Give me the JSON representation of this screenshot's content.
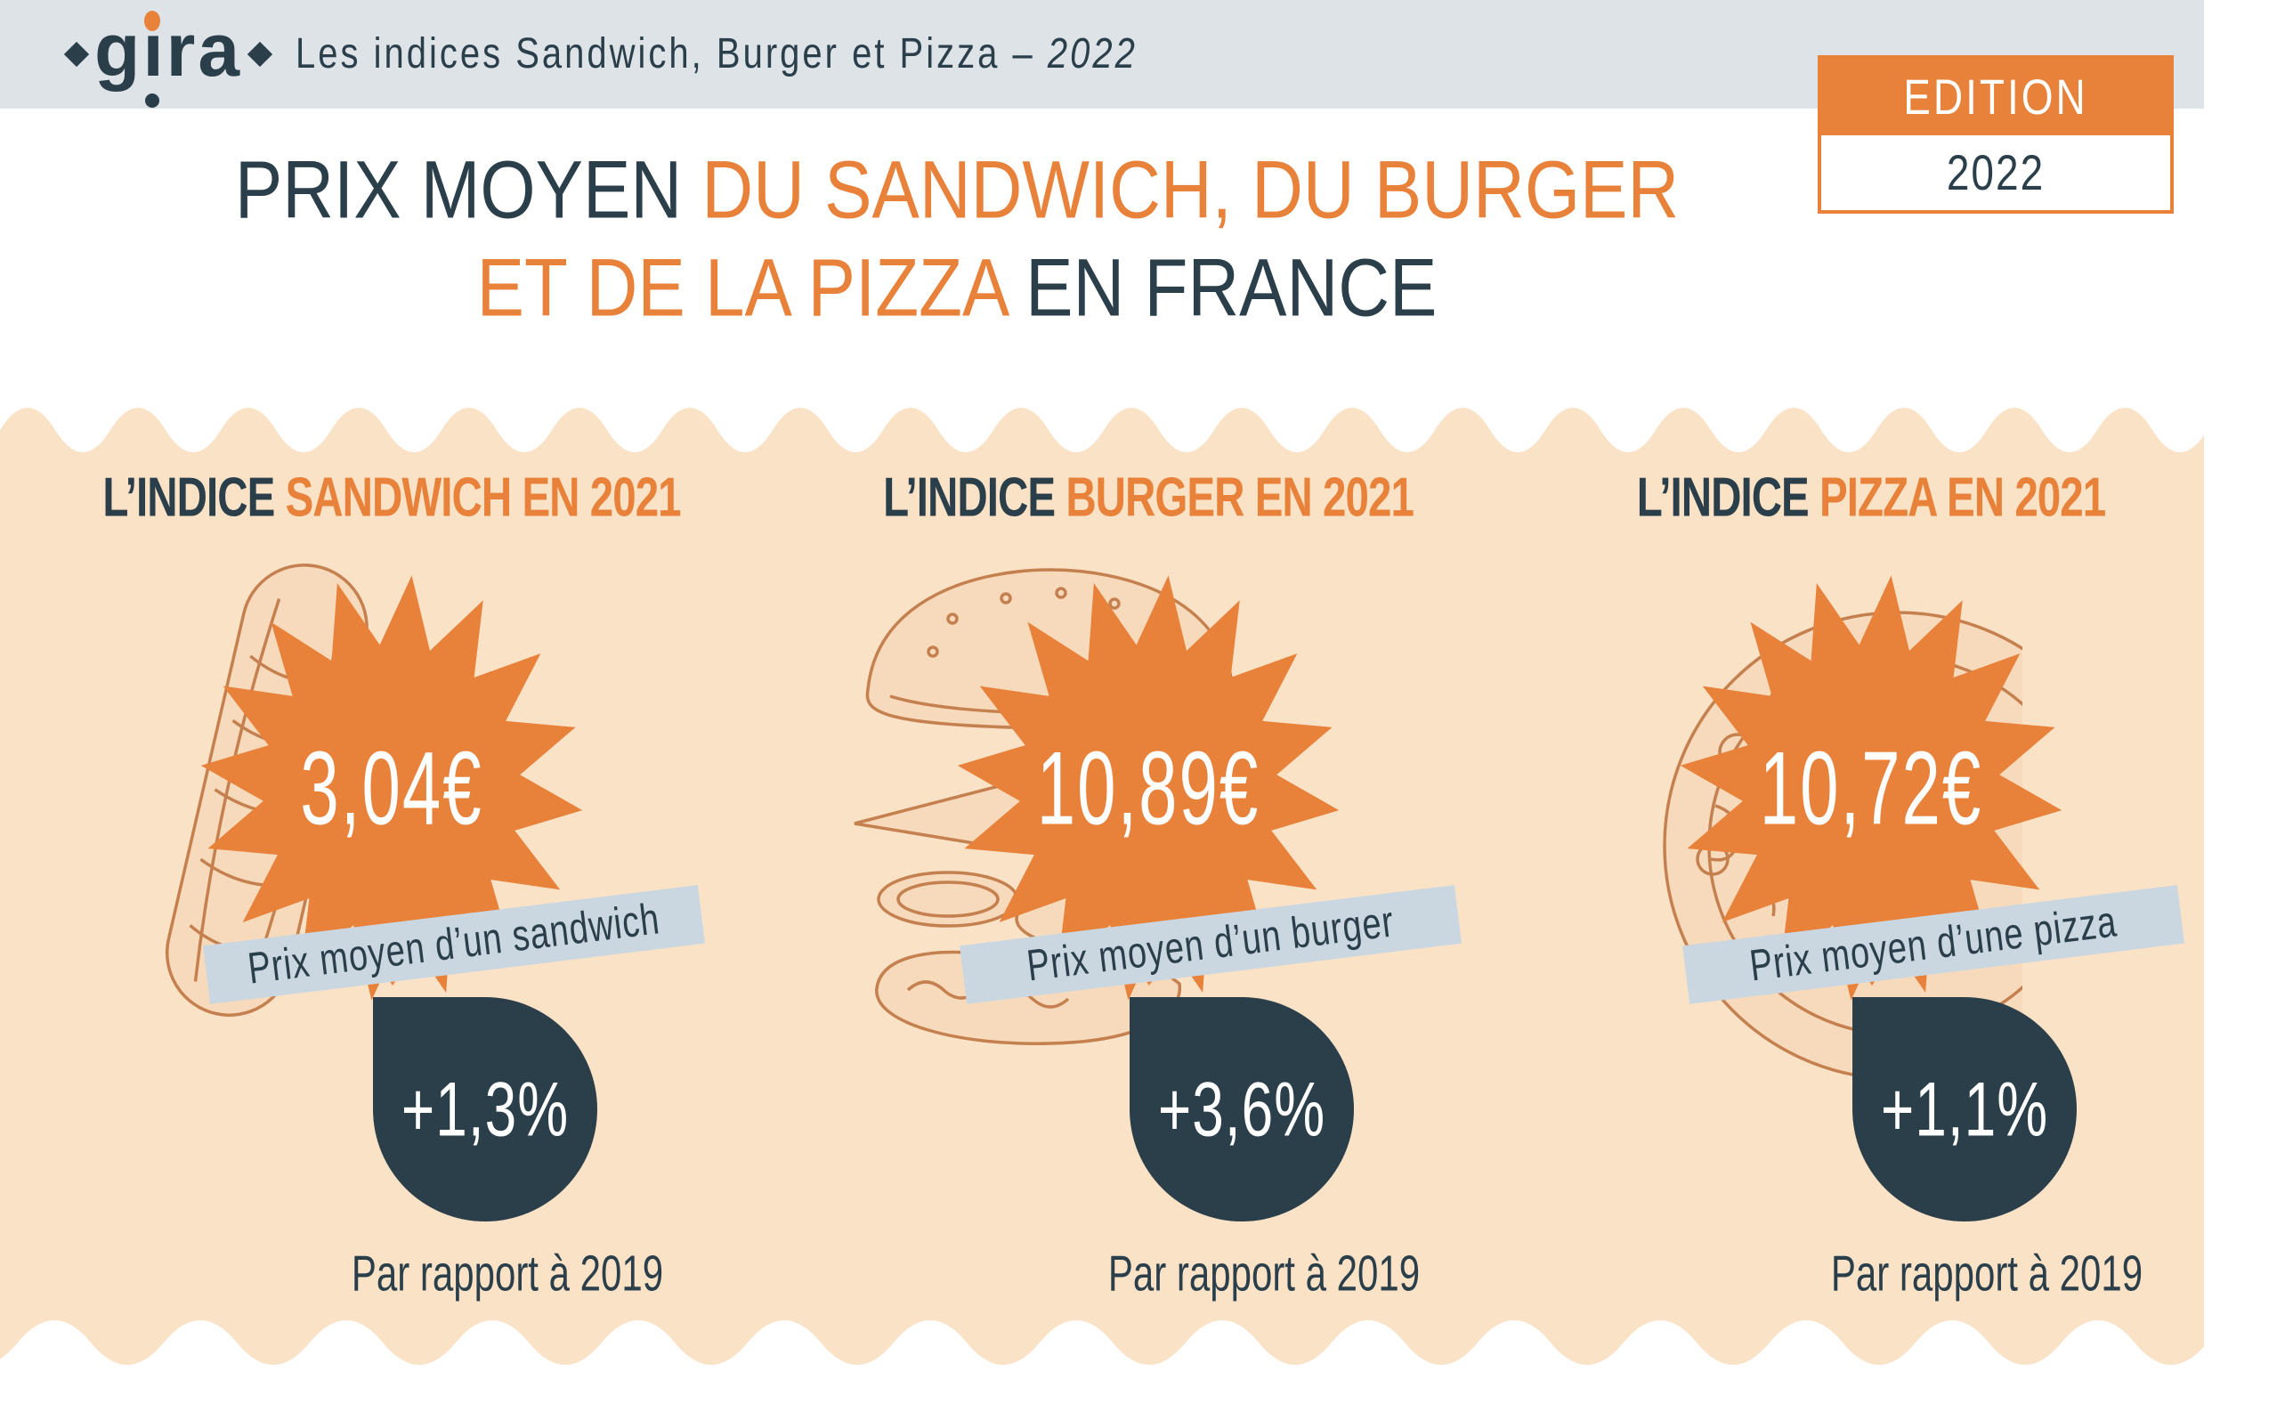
{
  "header": {
    "logo_part1": "g",
    "logo_dotless_i": "ı",
    "logo_part2": "ra",
    "subtitle": "Les indices Sandwich, Burger et Pizza – ",
    "subtitle_year": "2022"
  },
  "edition": {
    "label": "EDITION",
    "year": "2022"
  },
  "title": {
    "line1_dark": "PRIX MOYEN ",
    "line1_orange": "DU SANDWICH, DU BURGER",
    "line2_orange": "ET DE LA PIZZA ",
    "line2_dark": "EN FRANCE"
  },
  "columns": [
    {
      "key": "sandwich",
      "header_prefix": "L’INDICE ",
      "header_term": "SANDWICH EN 2021",
      "price": "3,04€",
      "ribbon": "Prix moyen d’un sandwich",
      "delta": "+1,3%",
      "caption": "Par rapport à 2019",
      "illustration": "sandwich-line-art"
    },
    {
      "key": "burger",
      "header_prefix": "L’INDICE ",
      "header_term": "BURGER EN 2021",
      "price": "10,89€",
      "ribbon": "Prix moyen d’un burger",
      "delta": "+3,6%",
      "caption": "Par rapport à 2019",
      "illustration": "burger-line-art"
    },
    {
      "key": "pizza",
      "header_prefix": "L’INDICE ",
      "header_term": "PIZZA EN 2021",
      "price": "10,72€",
      "ribbon": "Prix moyen d’une pizza",
      "delta": "+1,1%",
      "caption": "Par rapport à 2019",
      "illustration": "pizza-line-art"
    }
  ],
  "colors": {
    "accent_orange": "#E8813A",
    "dark_navy": "#2B3F4B",
    "panel_peach": "#FAE2C7",
    "ribbon_blue": "#CBD7E0",
    "header_gray": "#DEE3E7",
    "illustration_line": "#C5804F",
    "illustration_fill": "#F7DABB"
  }
}
